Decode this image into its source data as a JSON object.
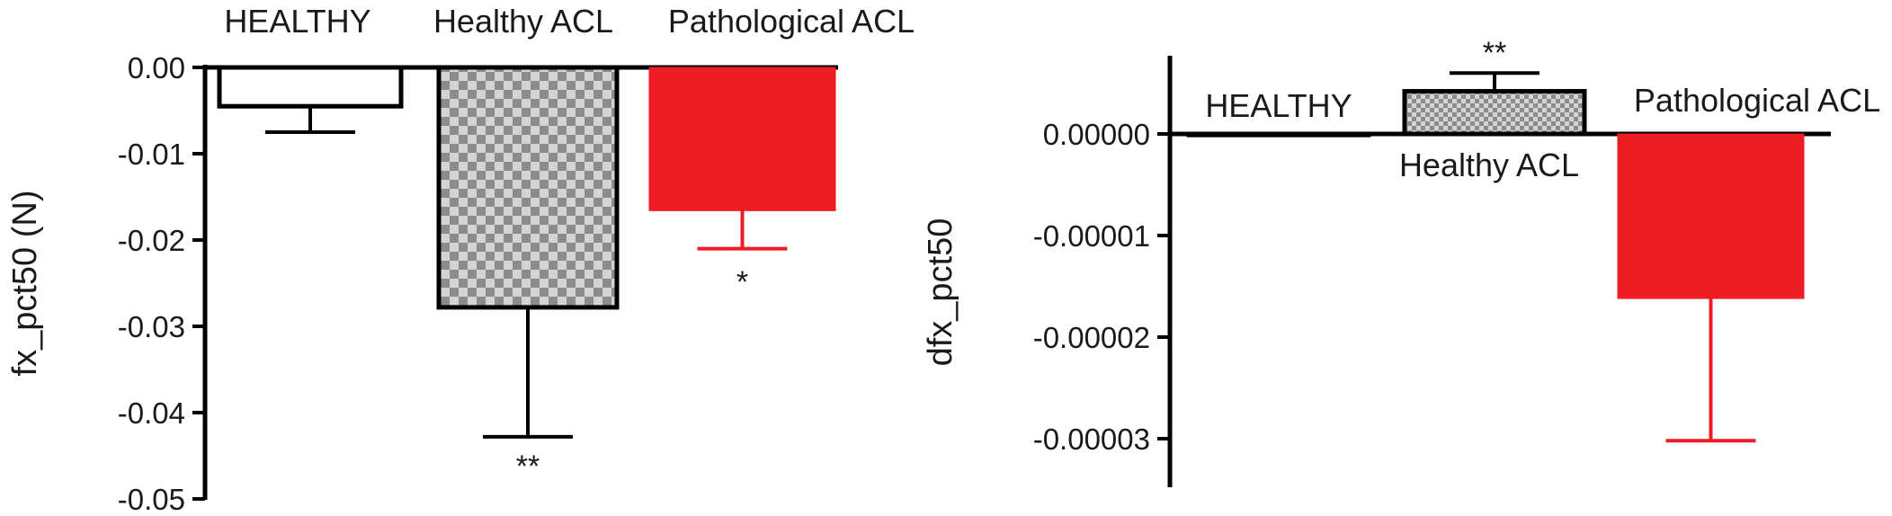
{
  "colors": {
    "axis": "#000000",
    "healthy_fill": "#ffffff",
    "healthy_acl_check_dark": "#8c8c8c",
    "healthy_acl_check_light": "#d4d4d4",
    "pathological": "#ee1c25"
  },
  "chart_data": [
    {
      "type": "bar",
      "ylabel": "fx_pct50 (N)",
      "ylim": [
        -0.05,
        0.0
      ],
      "yticks": [
        0.0,
        -0.01,
        -0.02,
        -0.03,
        -0.04,
        -0.05
      ],
      "ytick_labels": [
        "0.00",
        "-0.01",
        "-0.02",
        "-0.03",
        "-0.04",
        "-0.05"
      ],
      "categories": [
        "HEALTHY",
        "Healthy ACL",
        "Pathological ACL"
      ],
      "values": [
        -0.0045,
        -0.0278,
        -0.0166
      ],
      "errors": [
        0.003,
        0.015,
        0.0044
      ],
      "significance": [
        "",
        "**",
        "*"
      ]
    },
    {
      "type": "bar",
      "ylabel": "dfx_pct50",
      "ylim": [
        -3.5e-05,
        8e-06
      ],
      "yticks": [
        0.0,
        -1e-05,
        -2e-05,
        -3e-05
      ],
      "ytick_labels": [
        "0.00000",
        "-0.00001",
        "-0.00002",
        "-0.00003"
      ],
      "categories": [
        "HEALTHY",
        "Healthy ACL",
        "Pathological ACL"
      ],
      "values": [
        -1e-07,
        4.2e-06,
        -1.62e-05
      ],
      "errors": [
        0.0,
        1.8e-06,
        1.4e-05
      ],
      "significance": [
        "",
        "**",
        ""
      ]
    }
  ]
}
